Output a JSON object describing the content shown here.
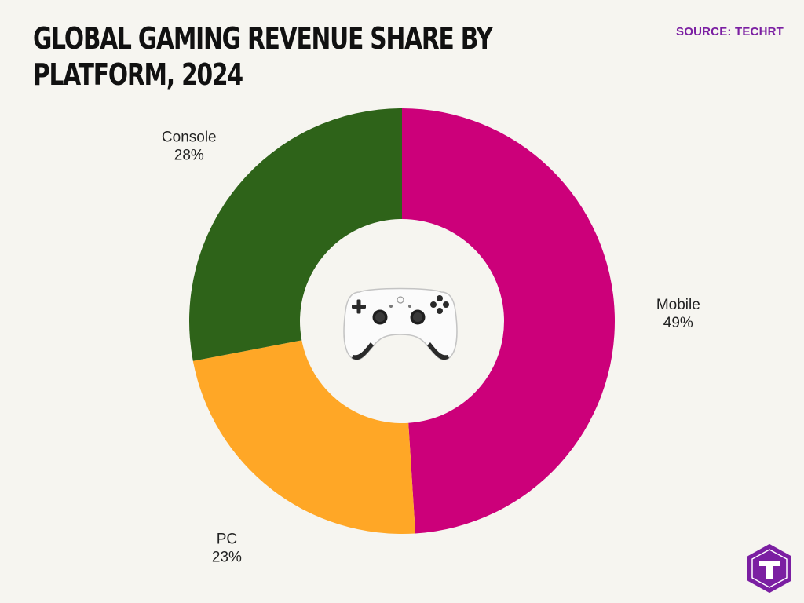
{
  "header": {
    "title_line1": "GLOBAL GAMING REVENUE SHARE BY",
    "title_line2": "PLATFORM, 2024",
    "source": "SOURCE: TECHRT"
  },
  "chart_data": {
    "type": "pie",
    "variant": "donut",
    "title": "GLOBAL GAMING REVENUE SHARE BY PLATFORM, 2024",
    "categories": [
      "Mobile",
      "PC",
      "Console"
    ],
    "values": [
      49,
      23,
      28
    ],
    "labels": [
      "49%",
      "23%",
      "28%"
    ],
    "colors": [
      "#cc007a",
      "#ffa726",
      "#2e6319"
    ],
    "start_angle": "12 o'clock",
    "direction": "clockwise",
    "center_icon": "gamepad-icon",
    "legend": "none"
  },
  "branding": {
    "logo_icon": "techrt-logo-icon",
    "logo_color": "#7b1fa2"
  }
}
